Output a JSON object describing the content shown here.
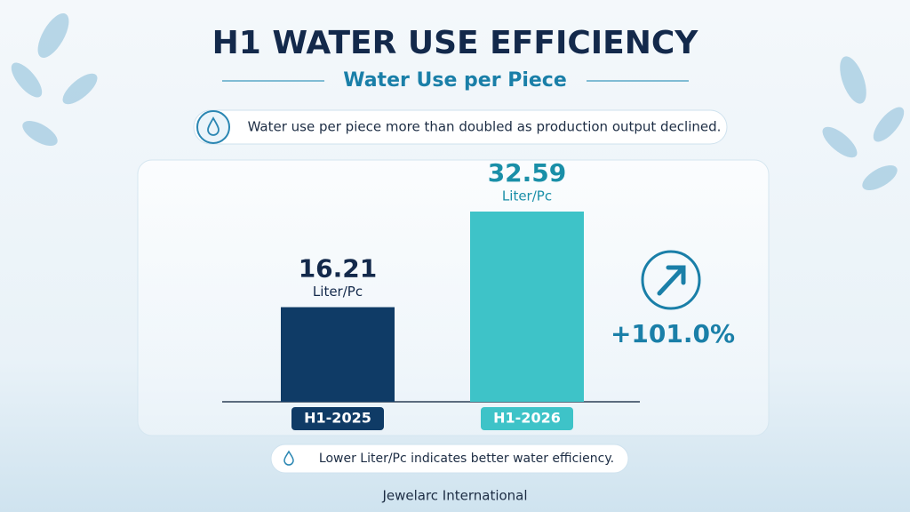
{
  "chart_data": {
    "type": "bar",
    "title": "H1 WATER USE EFFICIENCY",
    "subtitle": "Water Use per Piece",
    "headline": "Water use per piece more than doubled as production output declined.",
    "categories": [
      "H1-2025",
      "H1-2026"
    ],
    "values": [
      16.21,
      32.59
    ],
    "unit": "Liter/Pc",
    "colors": [
      "#0f3b66",
      "#3ec3c8"
    ],
    "annotation": "+101.0%",
    "note": "Lower Liter/Pc indicates better water efficiency.",
    "footer": "Jewelarc International"
  }
}
